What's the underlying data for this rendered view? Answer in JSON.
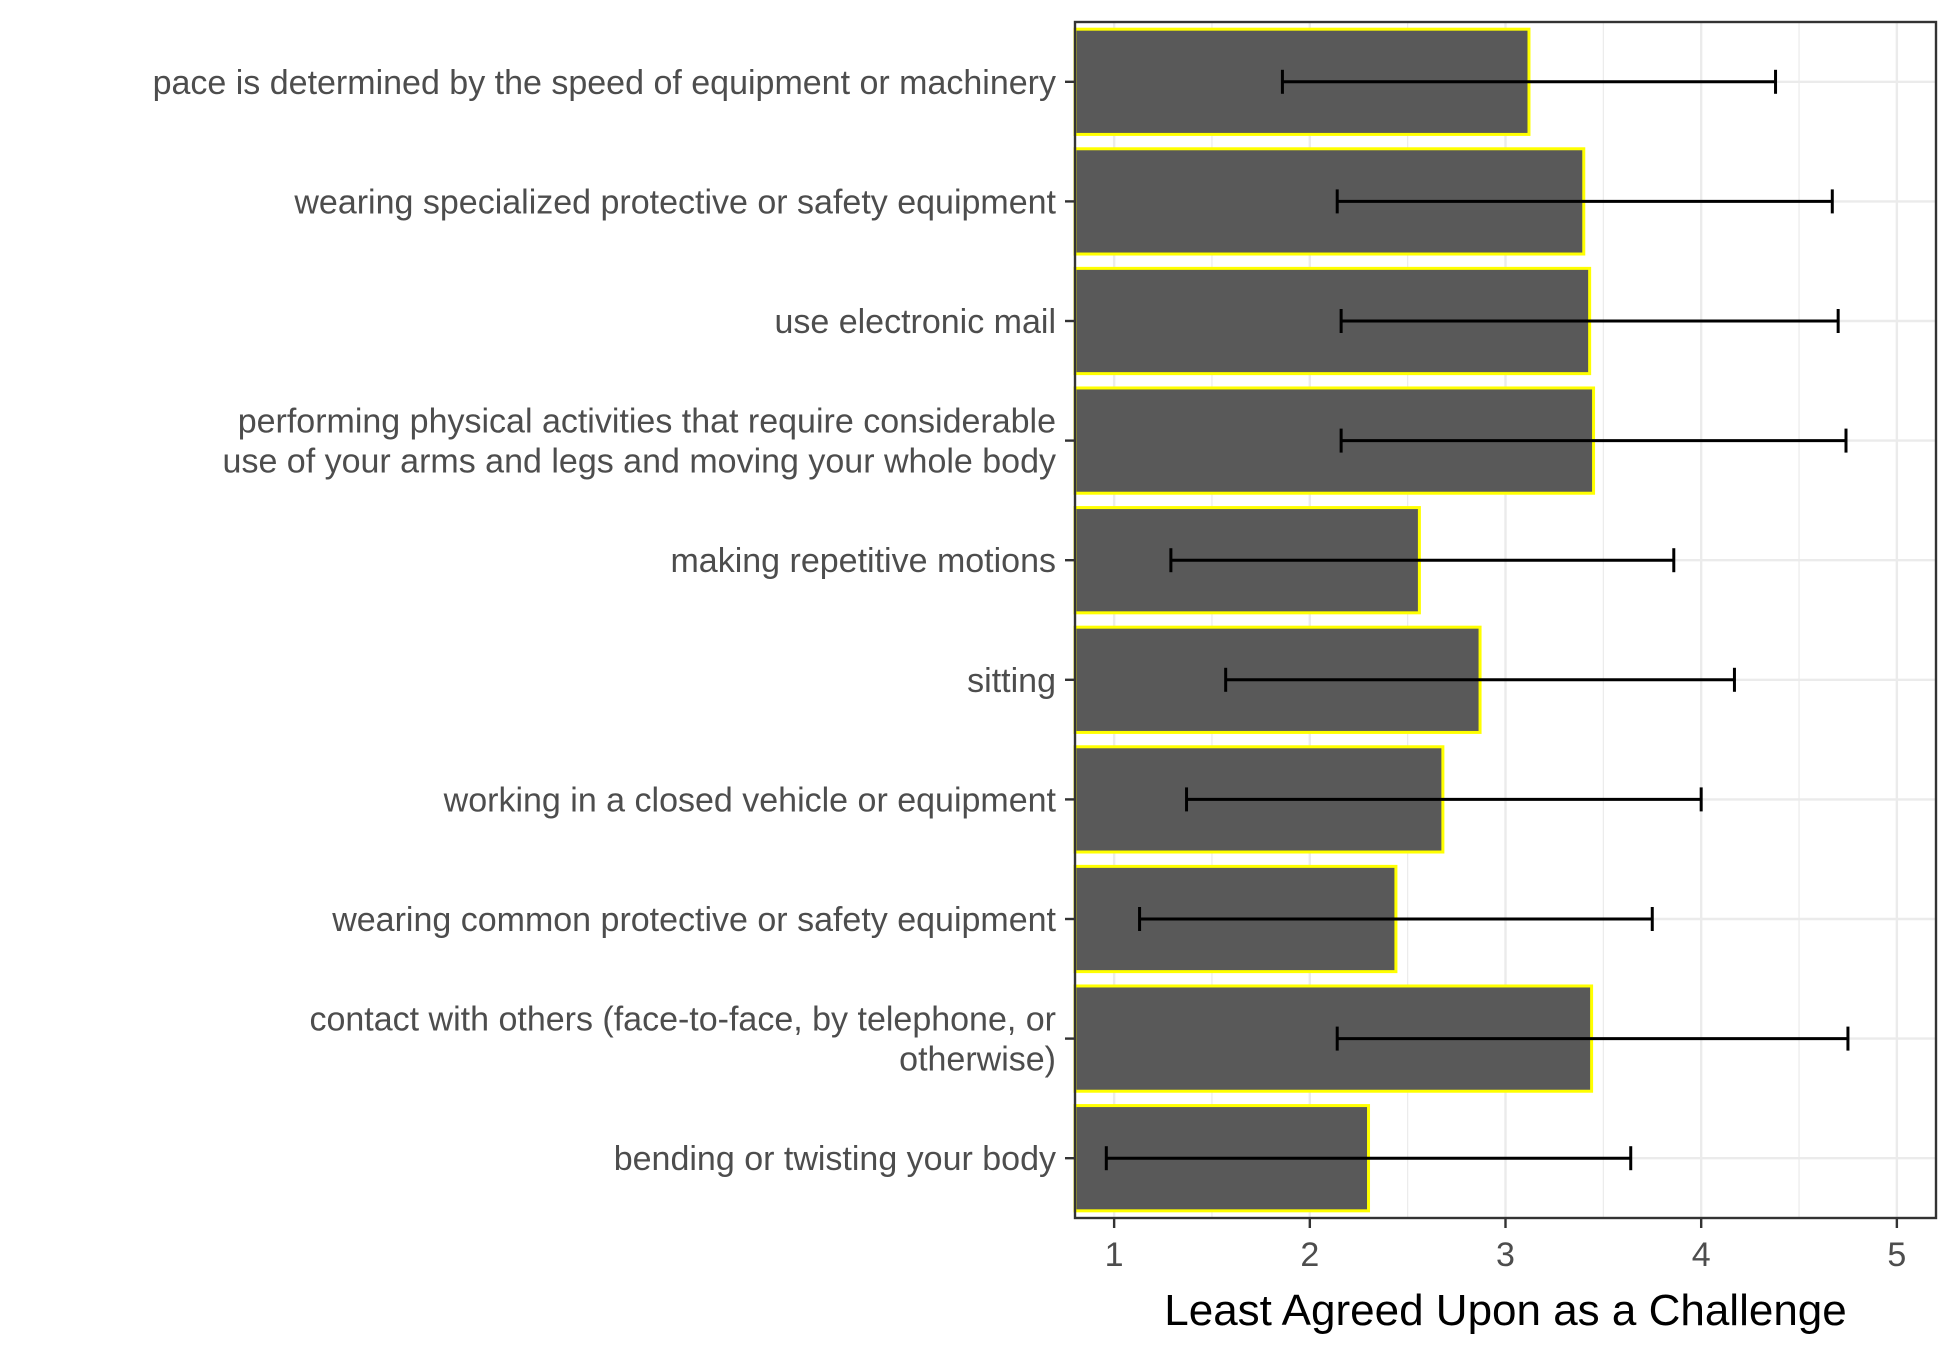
{
  "chart_data": {
    "type": "bar",
    "orientation": "horizontal",
    "title": "",
    "xlabel": "Least Agreed Upon as a Challenge",
    "ylabel": "",
    "xlim": [
      0.8,
      5.2
    ],
    "x_ticks": [
      1,
      2,
      3,
      4,
      5
    ],
    "grid": true,
    "legend": "none",
    "colors": {
      "bar_fill": "#595959",
      "bar_outline": "#ffff00",
      "error_bar": "#000000",
      "grid": "#ebebeb",
      "panel_border": "#333333"
    },
    "categories": [
      [
        "pace is determined by the speed of equipment or machinery"
      ],
      [
        "wearing specialized protective or safety equipment"
      ],
      [
        "use electronic mail"
      ],
      [
        "performing physical activities that require considerable",
        "use of your arms and legs and moving your whole body"
      ],
      [
        "making repetitive motions"
      ],
      [
        "sitting"
      ],
      [
        "working in a closed vehicle or equipment"
      ],
      [
        "wearing common protective or safety equipment"
      ],
      [
        "contact with others (face-to-face, by telephone, or",
        "otherwise)"
      ],
      [
        "bending or twisting your body"
      ]
    ],
    "values": [
      3.12,
      3.4,
      3.43,
      3.45,
      2.56,
      2.87,
      2.68,
      2.44,
      3.44,
      2.3
    ],
    "error_low": [
      1.86,
      2.14,
      2.16,
      2.16,
      1.29,
      1.57,
      1.37,
      1.13,
      2.14,
      0.96
    ],
    "error_high": [
      4.38,
      4.67,
      4.7,
      4.74,
      3.86,
      4.17,
      4.0,
      3.75,
      4.75,
      3.64
    ]
  }
}
